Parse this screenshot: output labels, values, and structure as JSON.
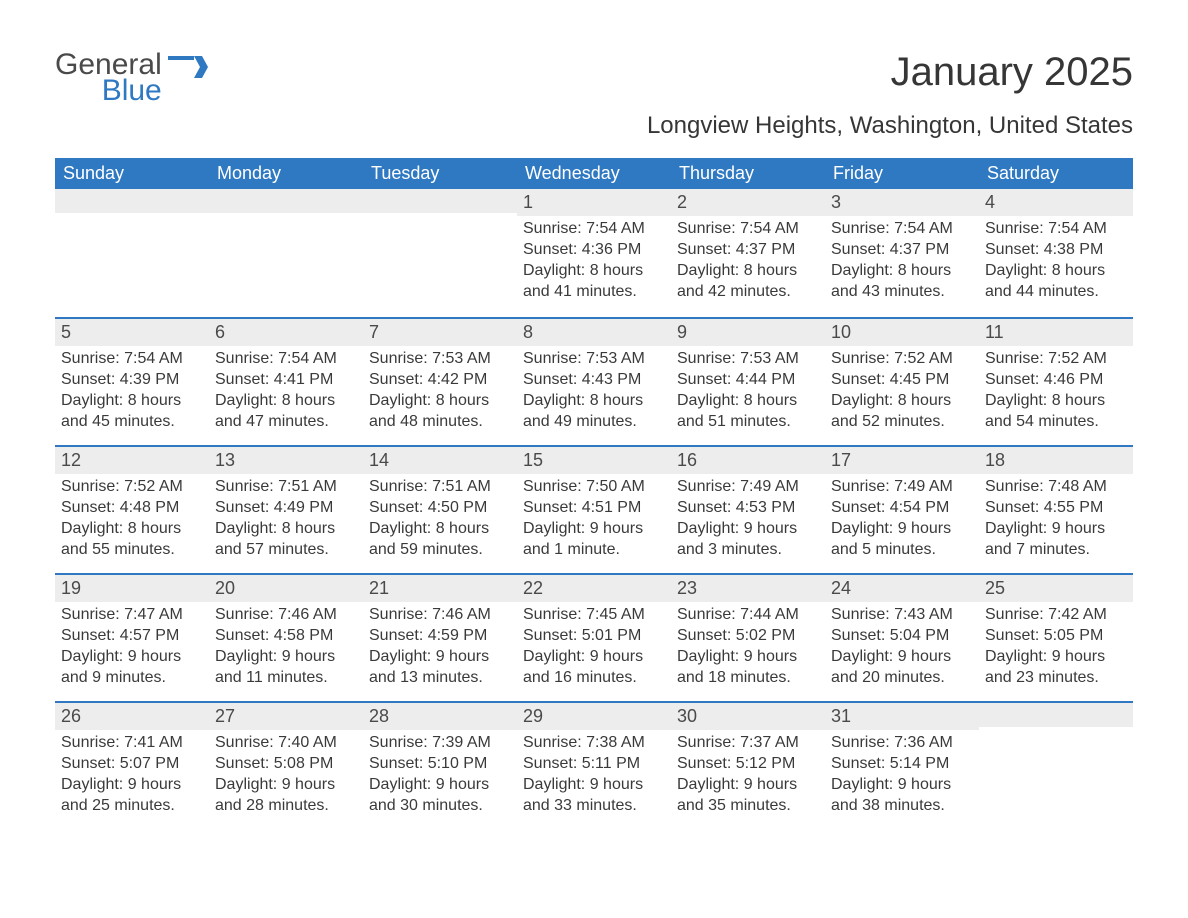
{
  "logo": {
    "general": "General",
    "blue": "Blue",
    "flag_color": "#2f79c2"
  },
  "title": "January 2025",
  "subtitle": "Longview Heights, Washington, United States",
  "header_bg": "#2f79c2",
  "daynum_bg": "#ededed",
  "border_color": "#2f79c2",
  "weekdays": [
    "Sunday",
    "Monday",
    "Tuesday",
    "Wednesday",
    "Thursday",
    "Friday",
    "Saturday"
  ],
  "weeks": [
    [
      {
        "n": "",
        "sunrise": "",
        "sunset": "",
        "daylight": ""
      },
      {
        "n": "",
        "sunrise": "",
        "sunset": "",
        "daylight": ""
      },
      {
        "n": "",
        "sunrise": "",
        "sunset": "",
        "daylight": ""
      },
      {
        "n": "1",
        "sunrise": "Sunrise: 7:54 AM",
        "sunset": "Sunset: 4:36 PM",
        "daylight": "Daylight: 8 hours and 41 minutes."
      },
      {
        "n": "2",
        "sunrise": "Sunrise: 7:54 AM",
        "sunset": "Sunset: 4:37 PM",
        "daylight": "Daylight: 8 hours and 42 minutes."
      },
      {
        "n": "3",
        "sunrise": "Sunrise: 7:54 AM",
        "sunset": "Sunset: 4:37 PM",
        "daylight": "Daylight: 8 hours and 43 minutes."
      },
      {
        "n": "4",
        "sunrise": "Sunrise: 7:54 AM",
        "sunset": "Sunset: 4:38 PM",
        "daylight": "Daylight: 8 hours and 44 minutes."
      }
    ],
    [
      {
        "n": "5",
        "sunrise": "Sunrise: 7:54 AM",
        "sunset": "Sunset: 4:39 PM",
        "daylight": "Daylight: 8 hours and 45 minutes."
      },
      {
        "n": "6",
        "sunrise": "Sunrise: 7:54 AM",
        "sunset": "Sunset: 4:41 PM",
        "daylight": "Daylight: 8 hours and 47 minutes."
      },
      {
        "n": "7",
        "sunrise": "Sunrise: 7:53 AM",
        "sunset": "Sunset: 4:42 PM",
        "daylight": "Daylight: 8 hours and 48 minutes."
      },
      {
        "n": "8",
        "sunrise": "Sunrise: 7:53 AM",
        "sunset": "Sunset: 4:43 PM",
        "daylight": "Daylight: 8 hours and 49 minutes."
      },
      {
        "n": "9",
        "sunrise": "Sunrise: 7:53 AM",
        "sunset": "Sunset: 4:44 PM",
        "daylight": "Daylight: 8 hours and 51 minutes."
      },
      {
        "n": "10",
        "sunrise": "Sunrise: 7:52 AM",
        "sunset": "Sunset: 4:45 PM",
        "daylight": "Daylight: 8 hours and 52 minutes."
      },
      {
        "n": "11",
        "sunrise": "Sunrise: 7:52 AM",
        "sunset": "Sunset: 4:46 PM",
        "daylight": "Daylight: 8 hours and 54 minutes."
      }
    ],
    [
      {
        "n": "12",
        "sunrise": "Sunrise: 7:52 AM",
        "sunset": "Sunset: 4:48 PM",
        "daylight": "Daylight: 8 hours and 55 minutes."
      },
      {
        "n": "13",
        "sunrise": "Sunrise: 7:51 AM",
        "sunset": "Sunset: 4:49 PM",
        "daylight": "Daylight: 8 hours and 57 minutes."
      },
      {
        "n": "14",
        "sunrise": "Sunrise: 7:51 AM",
        "sunset": "Sunset: 4:50 PM",
        "daylight": "Daylight: 8 hours and 59 minutes."
      },
      {
        "n": "15",
        "sunrise": "Sunrise: 7:50 AM",
        "sunset": "Sunset: 4:51 PM",
        "daylight": "Daylight: 9 hours and 1 minute."
      },
      {
        "n": "16",
        "sunrise": "Sunrise: 7:49 AM",
        "sunset": "Sunset: 4:53 PM",
        "daylight": "Daylight: 9 hours and 3 minutes."
      },
      {
        "n": "17",
        "sunrise": "Sunrise: 7:49 AM",
        "sunset": "Sunset: 4:54 PM",
        "daylight": "Daylight: 9 hours and 5 minutes."
      },
      {
        "n": "18",
        "sunrise": "Sunrise: 7:48 AM",
        "sunset": "Sunset: 4:55 PM",
        "daylight": "Daylight: 9 hours and 7 minutes."
      }
    ],
    [
      {
        "n": "19",
        "sunrise": "Sunrise: 7:47 AM",
        "sunset": "Sunset: 4:57 PM",
        "daylight": "Daylight: 9 hours and 9 minutes."
      },
      {
        "n": "20",
        "sunrise": "Sunrise: 7:46 AM",
        "sunset": "Sunset: 4:58 PM",
        "daylight": "Daylight: 9 hours and 11 minutes."
      },
      {
        "n": "21",
        "sunrise": "Sunrise: 7:46 AM",
        "sunset": "Sunset: 4:59 PM",
        "daylight": "Daylight: 9 hours and 13 minutes."
      },
      {
        "n": "22",
        "sunrise": "Sunrise: 7:45 AM",
        "sunset": "Sunset: 5:01 PM",
        "daylight": "Daylight: 9 hours and 16 minutes."
      },
      {
        "n": "23",
        "sunrise": "Sunrise: 7:44 AM",
        "sunset": "Sunset: 5:02 PM",
        "daylight": "Daylight: 9 hours and 18 minutes."
      },
      {
        "n": "24",
        "sunrise": "Sunrise: 7:43 AM",
        "sunset": "Sunset: 5:04 PM",
        "daylight": "Daylight: 9 hours and 20 minutes."
      },
      {
        "n": "25",
        "sunrise": "Sunrise: 7:42 AM",
        "sunset": "Sunset: 5:05 PM",
        "daylight": "Daylight: 9 hours and 23 minutes."
      }
    ],
    [
      {
        "n": "26",
        "sunrise": "Sunrise: 7:41 AM",
        "sunset": "Sunset: 5:07 PM",
        "daylight": "Daylight: 9 hours and 25 minutes."
      },
      {
        "n": "27",
        "sunrise": "Sunrise: 7:40 AM",
        "sunset": "Sunset: 5:08 PM",
        "daylight": "Daylight: 9 hours and 28 minutes."
      },
      {
        "n": "28",
        "sunrise": "Sunrise: 7:39 AM",
        "sunset": "Sunset: 5:10 PM",
        "daylight": "Daylight: 9 hours and 30 minutes."
      },
      {
        "n": "29",
        "sunrise": "Sunrise: 7:38 AM",
        "sunset": "Sunset: 5:11 PM",
        "daylight": "Daylight: 9 hours and 33 minutes."
      },
      {
        "n": "30",
        "sunrise": "Sunrise: 7:37 AM",
        "sunset": "Sunset: 5:12 PM",
        "daylight": "Daylight: 9 hours and 35 minutes."
      },
      {
        "n": "31",
        "sunrise": "Sunrise: 7:36 AM",
        "sunset": "Sunset: 5:14 PM",
        "daylight": "Daylight: 9 hours and 38 minutes."
      },
      {
        "n": "",
        "sunrise": "",
        "sunset": "",
        "daylight": ""
      }
    ]
  ]
}
